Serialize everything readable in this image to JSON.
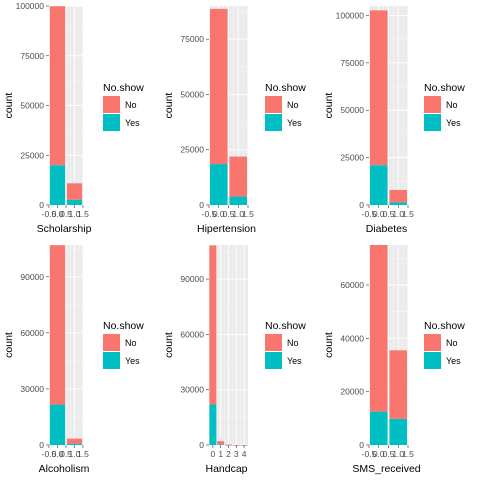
{
  "legend": {
    "title": "No.show",
    "entries": [
      {
        "label": "No",
        "color": "#F8766D"
      },
      {
        "label": "Yes",
        "color": "#00BFC4"
      }
    ]
  },
  "chart_data": [
    {
      "type": "bar",
      "stacked": true,
      "xlabel": "Scholarship",
      "ylabel": "count",
      "ylim": [
        0,
        100000
      ],
      "yticks": [
        0,
        25000,
        50000,
        75000,
        100000
      ],
      "xlim": [
        -0.5,
        1.5
      ],
      "xticks": [
        "-0.5",
        "0.0",
        "0.5",
        "1.0",
        "1.5"
      ],
      "categories": [
        0,
        1
      ],
      "series": [
        {
          "name": "Yes",
          "values": [
            20000,
            2600
          ]
        },
        {
          "name": "No",
          "values": [
            79900,
            8300
          ]
        }
      ]
    },
    {
      "type": "bar",
      "stacked": true,
      "xlabel": "Hipertension",
      "ylabel": "count",
      "ylim": [
        0,
        90000
      ],
      "yticks": [
        0,
        25000,
        50000,
        75000
      ],
      "xlim": [
        -0.5,
        1.5
      ],
      "xticks": [
        "-0.5",
        "0.0",
        "0.5",
        "1.0",
        "1.5"
      ],
      "categories": [
        0,
        1
      ],
      "series": [
        {
          "name": "Yes",
          "values": [
            18500,
            3800
          ]
        },
        {
          "name": "No",
          "values": [
            70200,
            18100
          ]
        }
      ]
    },
    {
      "type": "bar",
      "stacked": true,
      "xlabel": "Diabetes",
      "ylabel": "count",
      "ylim": [
        0,
        105000
      ],
      "yticks": [
        0,
        25000,
        50000,
        75000,
        100000
      ],
      "xlim": [
        -0.5,
        1.5
      ],
      "xticks": [
        "-0.5",
        "0.0",
        "0.5",
        "1.0",
        "1.5"
      ],
      "categories": [
        0,
        1
      ],
      "series": [
        {
          "name": "Yes",
          "values": [
            21000,
            1400
          ]
        },
        {
          "name": "No",
          "values": [
            81700,
            6500
          ]
        }
      ]
    },
    {
      "type": "bar",
      "stacked": true,
      "xlabel": "Alcoholism",
      "ylabel": "count",
      "ylim": [
        0,
        107000
      ],
      "yticks": [
        0,
        30000,
        60000,
        90000
      ],
      "xlim": [
        -0.5,
        1.5
      ],
      "xticks": [
        "-0.5",
        "0.0",
        "0.5",
        "1.0",
        "1.5"
      ],
      "categories": [
        0,
        1
      ],
      "series": [
        {
          "name": "Yes",
          "values": [
            21600,
            700
          ]
        },
        {
          "name": "No",
          "values": [
            85300,
            2700
          ]
        }
      ]
    },
    {
      "type": "bar",
      "stacked": true,
      "xlabel": "Handcap",
      "ylabel": "count",
      "ylim": [
        0,
        108500
      ],
      "yticks": [
        0,
        30000,
        60000,
        90000
      ],
      "xlim": [
        -0.5,
        4.5
      ],
      "xticks": [
        "0",
        "1",
        "2",
        "3",
        "4"
      ],
      "categories": [
        0,
        1,
        2,
        3,
        4
      ],
      "series": [
        {
          "name": "Yes",
          "values": [
            22000,
            370,
            40,
            3,
            1
          ]
        },
        {
          "name": "No",
          "values": [
            86300,
            1700,
            150,
            10,
            2
          ]
        }
      ]
    },
    {
      "type": "bar",
      "stacked": true,
      "xlabel": "SMS_received",
      "ylabel": "count",
      "ylim": [
        0,
        75000
      ],
      "yticks": [
        0,
        20000,
        40000,
        60000
      ],
      "xlim": [
        -0.5,
        1.5
      ],
      "xticks": [
        "-0.5",
        "0.0",
        "0.5",
        "1.0",
        "1.5"
      ],
      "categories": [
        0,
        1
      ],
      "series": [
        {
          "name": "Yes",
          "values": [
            12500,
            9800
          ]
        },
        {
          "name": "No",
          "values": [
            62500,
            25700
          ]
        }
      ]
    }
  ]
}
